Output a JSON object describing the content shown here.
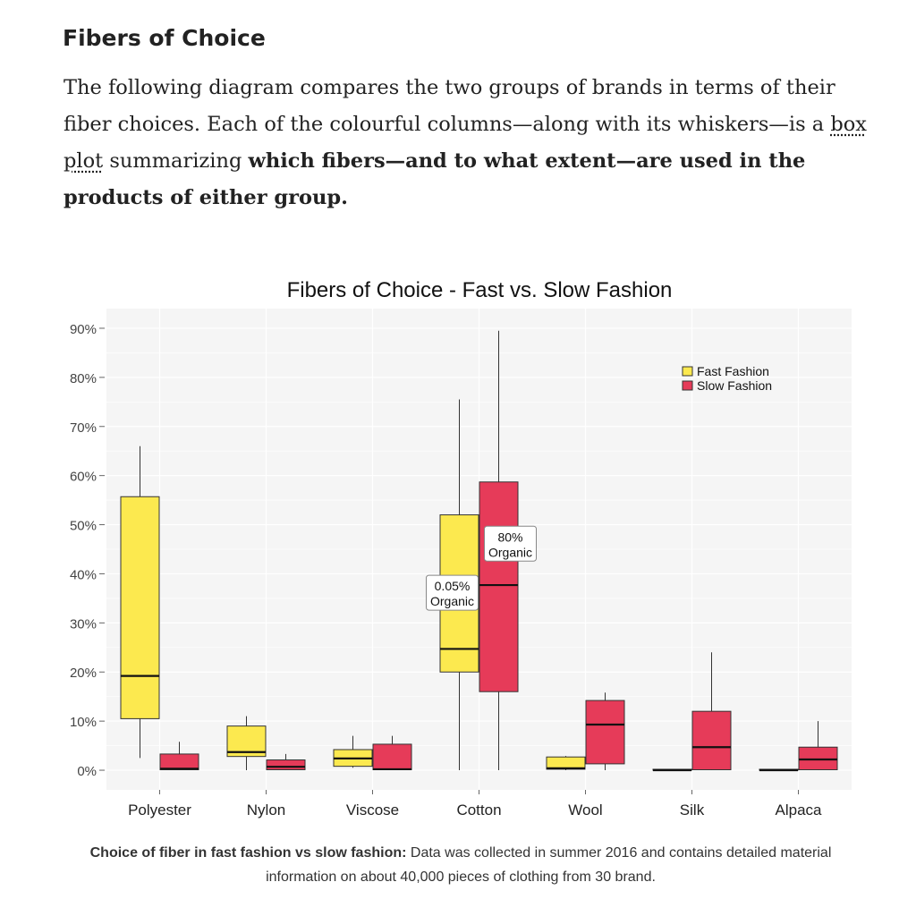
{
  "section": {
    "heading": "Fibers of Choice",
    "para_part1": "The following diagram compares the two groups of brands in terms of their fiber choices. Each of the colourful columns—along with its whiskers—is a ",
    "para_link": "box plot",
    "para_part2": " summarizing ",
    "para_bold": "which fibers—and to what extent—are used in the products of either group."
  },
  "caption": {
    "bold": "Choice of fiber in fast fashion vs slow fashion:",
    "text": " Data was collected in summer 2016 and contains detailed material information on about 40,000 pieces of clothing from 30 brand."
  },
  "colors": {
    "fast": "#fce94f",
    "slow": "#e63b59",
    "panel": "#f5f5f5",
    "grid": "#ffffff"
  },
  "chart_data": {
    "type": "box",
    "title": "Fibers of Choice - Fast vs. Slow Fashion",
    "xlabel": "",
    "ylabel": "",
    "ylim": [
      -4,
      94
    ],
    "yticks": [
      0,
      10,
      20,
      30,
      40,
      50,
      60,
      70,
      80,
      90
    ],
    "ytick_labels": [
      "0%",
      "10%",
      "20%",
      "30%",
      "40%",
      "50%",
      "60%",
      "70%",
      "80%",
      "90%"
    ],
    "categories": [
      "Polyester",
      "Nylon",
      "Viscose",
      "Cotton",
      "Wool",
      "Silk",
      "Alpaca"
    ],
    "legend_position": "top-right",
    "grid": true,
    "series": [
      {
        "name": "Fast Fashion",
        "color": "#fce94f",
        "boxes": [
          {
            "min": 2.5,
            "q1": 10.5,
            "median": 19.2,
            "q3": 55.7,
            "max": 66.0
          },
          {
            "min": 0.0,
            "q1": 2.8,
            "median": 3.7,
            "q3": 9.0,
            "max": 11.0
          },
          {
            "min": 0.5,
            "q1": 0.8,
            "median": 2.4,
            "q3": 4.2,
            "max": 7.0
          },
          {
            "min": 0.0,
            "q1": 20.0,
            "median": 24.7,
            "q3": 52.0,
            "max": 75.5
          },
          {
            "min": 0.0,
            "q1": 0.2,
            "median": 0.4,
            "q3": 2.7,
            "max": 2.9
          },
          {
            "min": 0.0,
            "q1": 0.0,
            "median": 0.0,
            "q3": 0.2,
            "max": 0.2
          },
          {
            "min": 0.0,
            "q1": 0.0,
            "median": 0.0,
            "q3": 0.2,
            "max": 0.2
          }
        ]
      },
      {
        "name": "Slow Fashion",
        "color": "#e63b59",
        "boxes": [
          {
            "min": 0.0,
            "q1": 0.1,
            "median": 0.3,
            "q3": 3.3,
            "max": 5.8
          },
          {
            "min": 0.0,
            "q1": 0.1,
            "median": 0.7,
            "q3": 2.1,
            "max": 3.3
          },
          {
            "min": 0.0,
            "q1": 0.1,
            "median": 0.2,
            "q3": 5.3,
            "max": 7.0
          },
          {
            "min": 0.0,
            "q1": 16.0,
            "median": 37.7,
            "q3": 58.7,
            "max": 89.5
          },
          {
            "min": 0.0,
            "q1": 1.3,
            "median": 9.3,
            "q3": 14.2,
            "max": 15.8
          },
          {
            "min": 0.0,
            "q1": 0.1,
            "median": 4.7,
            "q3": 12.0,
            "max": 24.0
          },
          {
            "min": 0.0,
            "q1": 0.1,
            "median": 2.2,
            "q3": 4.7,
            "max": 10.0
          }
        ]
      }
    ],
    "annotations": [
      {
        "category": "Cotton",
        "series": "Fast Fashion",
        "line1": "0.05%",
        "line2": "Organic",
        "y": 35.5
      },
      {
        "category": "Cotton",
        "series": "Slow Fashion",
        "line1": "80%",
        "line2": "Organic",
        "y": 45.5
      }
    ]
  }
}
